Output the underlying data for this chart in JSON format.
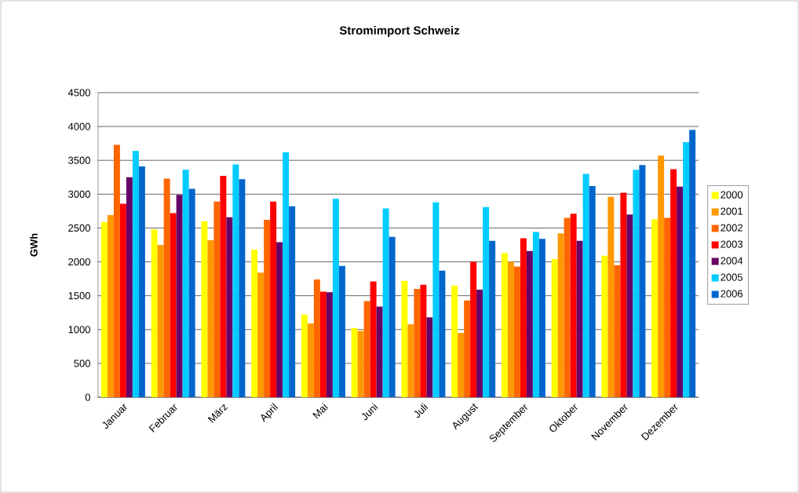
{
  "chart_data": {
    "type": "bar",
    "title": "Stromimport Schweiz",
    "ylabel": "GWh",
    "categories": [
      "Januar",
      "Februar",
      "März",
      "April",
      "Mai",
      "Juni",
      "Juli",
      "August",
      "September",
      "Oktober",
      "November",
      "Dezember"
    ],
    "series": [
      {
        "name": "2000",
        "color": "#ffff00",
        "values": [
          2590,
          2480,
          2600,
          2180,
          1220,
          1020,
          1720,
          1650,
          2130,
          2040,
          2090,
          2630
        ]
      },
      {
        "name": "2001",
        "color": "#ff9900",
        "values": [
          2690,
          2250,
          2320,
          1840,
          1090,
          980,
          1080,
          950,
          2000,
          2420,
          2960,
          3570
        ]
      },
      {
        "name": "2002",
        "color": "#ff6600",
        "values": [
          3730,
          3230,
          2890,
          2620,
          1740,
          1420,
          1600,
          1430,
          1930,
          2650,
          1950,
          2650
        ]
      },
      {
        "name": "2003",
        "color": "#ff0000",
        "values": [
          2860,
          2720,
          3270,
          2890,
          1560,
          1710,
          1660,
          2000,
          2350,
          2710,
          3020,
          3370
        ]
      },
      {
        "name": "2004",
        "color": "#660066",
        "values": [
          3250,
          2990,
          2660,
          2290,
          1550,
          1340,
          1180,
          1590,
          2160,
          2310,
          2700,
          3110
        ]
      },
      {
        "name": "2005",
        "color": "#00ccff",
        "values": [
          3640,
          3360,
          3440,
          3620,
          2930,
          2790,
          2880,
          2810,
          2440,
          3300,
          3360,
          3770
        ]
      },
      {
        "name": "2006",
        "color": "#0066cc",
        "values": [
          3410,
          3080,
          3220,
          2820,
          1940,
          2370,
          1870,
          2310,
          2340,
          3120,
          3430,
          3950
        ]
      }
    ],
    "ylim": [
      0,
      4500
    ],
    "yticks": [
      0,
      500,
      1000,
      1500,
      2000,
      2500,
      3000,
      3500,
      4000,
      4500
    ],
    "grid": "y",
    "legend": "right"
  }
}
